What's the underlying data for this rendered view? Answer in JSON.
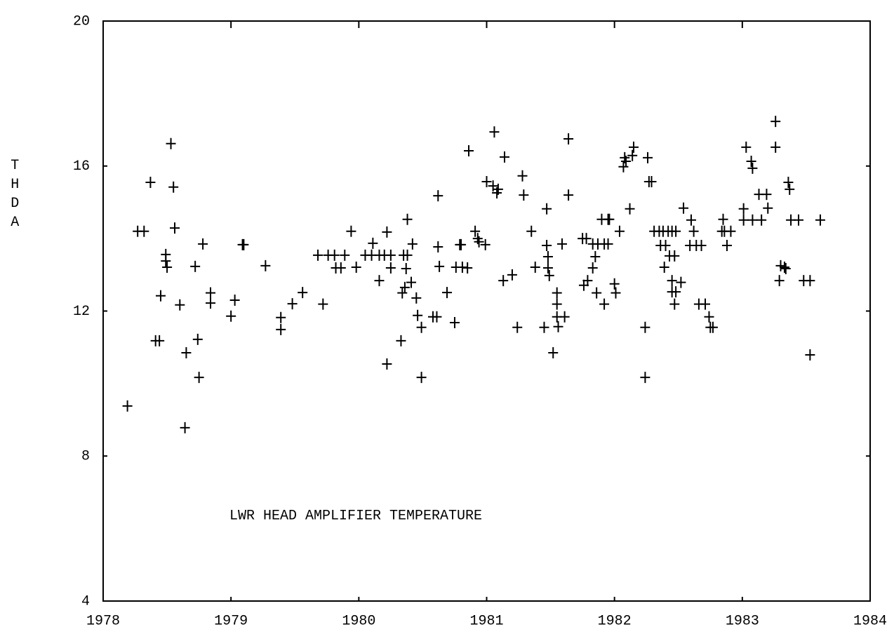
{
  "chart_data": {
    "type": "scatter",
    "annotation": "LWR  HEAD AMPLIFIER TEMPERATURE",
    "y_label": "THDA",
    "color": "#000000",
    "xlim": [
      1978,
      1984
    ],
    "xticks": [
      1978,
      1979,
      1980,
      1981,
      1982,
      1983,
      1984
    ],
    "ylim": [
      4,
      20
    ],
    "yticks": [
      4,
      8,
      12,
      16,
      20
    ],
    "x": [
      1978.19,
      1978.27,
      1978.32,
      1978.37,
      1978.41,
      1978.44,
      1978.45,
      1978.49,
      1978.49,
      1978.5,
      1978.53,
      1978.55,
      1978.56,
      1978.6,
      1978.64,
      1978.65,
      1978.72,
      1978.74,
      1978.75,
      1978.78,
      1978.84,
      1978.84,
      1979.0,
      1979.03,
      1979.09,
      1979.1,
      1979.27,
      1979.39,
      1979.39,
      1979.48,
      1979.56,
      1979.68,
      1979.72,
      1979.76,
      1979.81,
      1979.82,
      1979.86,
      1979.89,
      1979.94,
      1979.98,
      1980.05,
      1980.1,
      1980.11,
      1980.16,
      1980.16,
      1980.2,
      1980.22,
      1980.22,
      1980.25,
      1980.25,
      1980.33,
      1980.35,
      1980.38,
      1980.37,
      1980.34,
      1980.36,
      1980.38,
      1980.42,
      1980.41,
      1980.45,
      1980.46,
      1980.49,
      1980.49,
      1980.58,
      1980.61,
      1980.62,
      1980.62,
      1980.63,
      1980.69,
      1980.75,
      1980.76,
      1980.81,
      1980.79,
      1980.8,
      1980.85,
      1980.86,
      1980.91,
      1980.93,
      1980.94,
      1980.99,
      1981.0,
      1981.05,
      1981.08,
      1981.09,
      1981.06,
      1981.13,
      1981.14,
      1981.2,
      1981.24,
      1981.28,
      1981.29,
      1981.35,
      1981.38,
      1981.45,
      1981.47,
      1981.47,
      1981.48,
      1981.48,
      1981.49,
      1981.52,
      1981.55,
      1981.55,
      1981.55,
      1981.56,
      1981.61,
      1981.59,
      1981.64,
      1981.64,
      1981.75,
      1981.78,
      1981.76,
      1981.79,
      1981.83,
      1981.85,
      1981.83,
      1981.87,
      1981.86,
      1981.9,
      1981.95,
      1981.96,
      1981.92,
      1981.95,
      1981.92,
      1982.0,
      1982.01,
      1982.04,
      1982.07,
      1982.08,
      1982.09,
      1982.12,
      1982.14,
      1982.15,
      1982.24,
      1982.24,
      1982.26,
      1982.27,
      1982.29,
      1982.31,
      1982.35,
      1982.38,
      1982.42,
      1982.45,
      1982.48,
      1982.36,
      1982.4,
      1982.39,
      1982.43,
      1982.47,
      1982.45,
      1982.45,
      1982.48,
      1982.47,
      1982.52,
      1982.54,
      1982.6,
      1982.62,
      1982.59,
      1982.64,
      1982.68,
      1982.66,
      1982.71,
      1982.74,
      1982.75,
      1982.77,
      1982.85,
      1982.86,
      1982.84,
      1982.88,
      1982.91,
      1983.01,
      1983.01,
      1983.03,
      1983.07,
      1983.08,
      1983.08,
      1983.15,
      1983.13,
      1983.19,
      1983.2,
      1983.26,
      1983.26,
      1983.29,
      1983.3,
      1983.33,
      1983.34,
      1983.36,
      1983.37,
      1983.38,
      1983.44,
      1983.48,
      1983.53,
      1983.53,
      1983.61
    ],
    "values": [
      9.38,
      14.2,
      14.2,
      15.55,
      11.18,
      11.18,
      12.42,
      13.56,
      13.38,
      13.21,
      16.62,
      15.42,
      14.29,
      12.17,
      8.78,
      10.85,
      13.23,
      11.22,
      10.17,
      13.85,
      12.5,
      12.22,
      11.86,
      12.3,
      13.83,
      13.83,
      13.25,
      11.82,
      11.49,
      12.2,
      12.51,
      13.54,
      12.19,
      13.54,
      13.54,
      13.19,
      13.19,
      13.54,
      14.2,
      13.21,
      13.54,
      13.54,
      13.87,
      13.54,
      12.84,
      13.54,
      14.18,
      10.54,
      13.54,
      13.19,
      11.18,
      13.54,
      13.54,
      13.17,
      12.5,
      12.65,
      14.53,
      13.85,
      12.79,
      12.36,
      11.88,
      11.55,
      10.17,
      11.84,
      11.84,
      13.77,
      15.18,
      13.23,
      12.51,
      11.68,
      13.21,
      13.21,
      13.83,
      13.83,
      13.19,
      16.42,
      14.2,
      14.0,
      13.91,
      13.83,
      15.57,
      15.45,
      15.26,
      15.36,
      16.94,
      12.84,
      16.25,
      13.0,
      11.55,
      15.73,
      15.2,
      14.2,
      13.21,
      11.55,
      14.82,
      13.81,
      13.5,
      13.19,
      12.98,
      10.85,
      12.5,
      12.19,
      11.84,
      11.57,
      11.84,
      13.85,
      16.75,
      15.2,
      14.0,
      14.0,
      12.71,
      12.84,
      13.19,
      13.5,
      13.85,
      13.85,
      12.5,
      14.53,
      14.53,
      14.53,
      13.85,
      13.85,
      12.19,
      12.75,
      12.5,
      14.2,
      15.98,
      16.23,
      16.13,
      14.82,
      16.29,
      16.52,
      11.55,
      10.17,
      16.23,
      15.57,
      15.57,
      14.2,
      14.2,
      14.2,
      14.2,
      14.2,
      14.2,
      13.81,
      13.81,
      13.21,
      13.52,
      13.52,
      12.84,
      12.53,
      12.53,
      12.19,
      12.79,
      14.84,
      14.51,
      14.2,
      13.81,
      13.81,
      13.81,
      12.19,
      12.19,
      11.84,
      11.55,
      11.55,
      14.53,
      14.2,
      14.2,
      13.81,
      14.2,
      14.82,
      14.51,
      16.52,
      16.13,
      15.94,
      14.51,
      14.51,
      15.22,
      15.22,
      14.84,
      17.23,
      16.52,
      12.84,
      13.25,
      13.21,
      13.17,
      15.55,
      15.36,
      14.51,
      14.51,
      12.84,
      12.84,
      10.79,
      14.51
    ]
  }
}
